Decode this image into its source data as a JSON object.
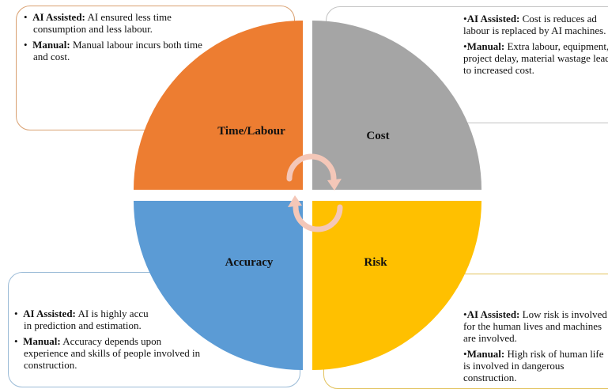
{
  "bullet": "•",
  "quadrants": {
    "time": {
      "label": "Time/Labour",
      "color": "#ed7d31",
      "ai_title": "AI Assisted:",
      "ai_text": "AI ensured less time consumption and less labour.",
      "manual_title": "Manual:",
      "manual_text": "Manual labour incurs both time and cost."
    },
    "cost": {
      "label": "Cost",
      "color": "#a5a5a5",
      "ai_title": "AI Assisted:",
      "ai_text": "Cost is reduces ad labour is replaced by AI machines.",
      "manual_title": "Manual:",
      "manual_text": "Extra labour, equipment, project delay, material wastage lead to increased cost."
    },
    "accuracy": {
      "label": "Accuracy",
      "color": "#5b9bd5",
      "ai_title": "AI Assisted:",
      "ai_text": "AI is highly accu",
      "ai_text_2": "in prediction and estimation.",
      "manual_title": "Manual:",
      "manual_text": "Accuracy depends upon experience and skills of people involved in construction."
    },
    "risk": {
      "label": "Risk",
      "color": "#ffc000",
      "ai_title": "AI Assisted:",
      "ai_text": "Low risk is involved for the human lives and machines are involved.",
      "manual_title": "Manual:",
      "manual_text": "High risk of human life is involved in dangerous construction."
    }
  },
  "arrow_color": "#f4c7b8"
}
